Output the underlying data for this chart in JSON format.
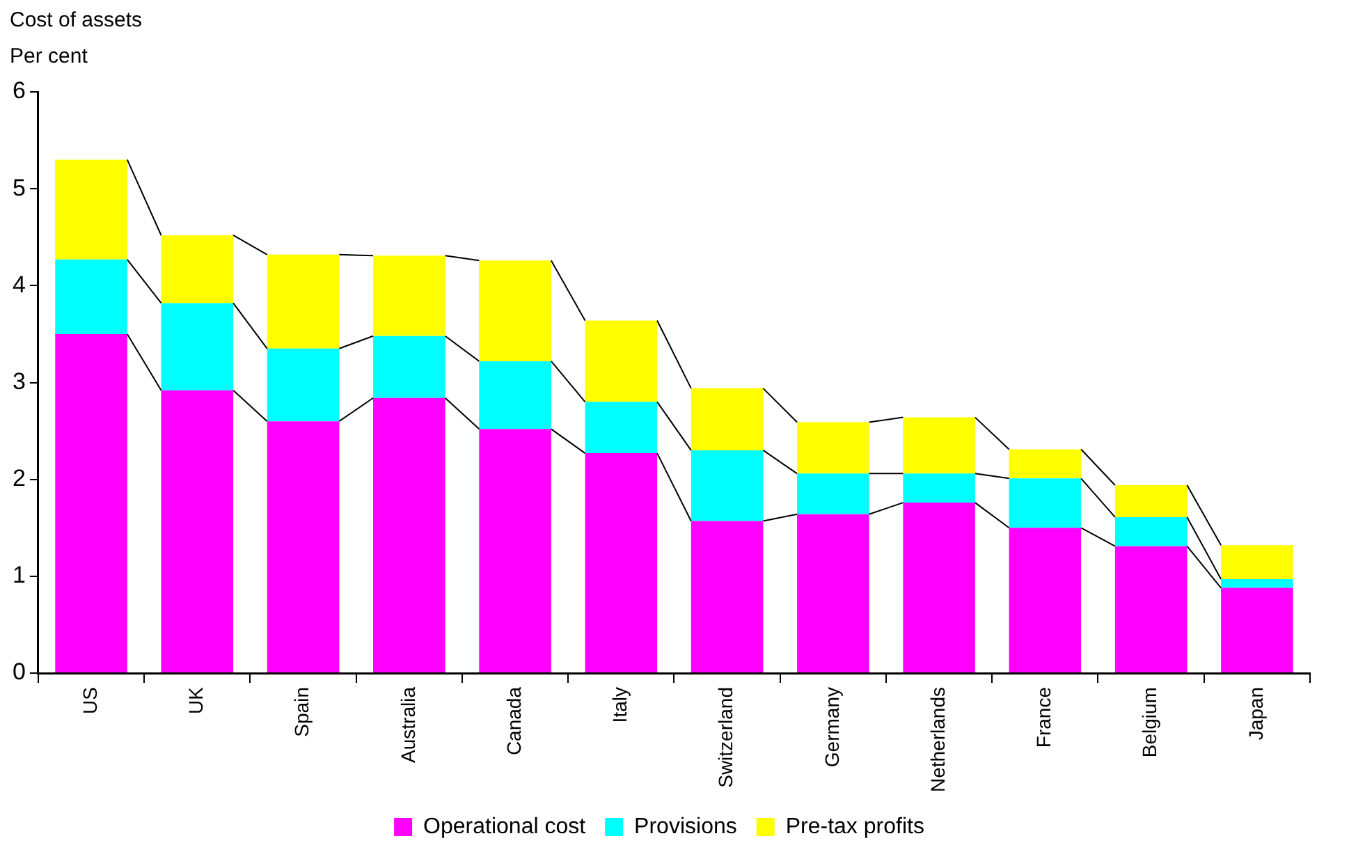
{
  "chart_data": {
    "type": "bar",
    "stacked": true,
    "title": "Cost of assets",
    "ylabel": "Per cent",
    "categories": [
      "US",
      "UK",
      "Spain",
      "Australia",
      "Canada",
      "Italy",
      "Switzerland",
      "Germany",
      "Netherlands",
      "France",
      "Belgium",
      "Japan"
    ],
    "series": [
      {
        "name": "Operational cost",
        "color": "#ff00ff",
        "values": [
          3.5,
          2.92,
          2.6,
          2.84,
          2.52,
          2.27,
          1.57,
          1.64,
          1.76,
          1.5,
          1.31,
          0.88
        ]
      },
      {
        "name": "Provisions",
        "color": "#00ffff",
        "values": [
          0.77,
          0.9,
          0.75,
          0.64,
          0.7,
          0.53,
          0.73,
          0.42,
          0.3,
          0.51,
          0.3,
          0.09
        ]
      },
      {
        "name": "Pre-tax profits",
        "color": "#ffff00",
        "values": [
          1.03,
          0.7,
          0.97,
          0.83,
          1.04,
          0.84,
          0.64,
          0.53,
          0.58,
          0.3,
          0.33,
          0.35
        ]
      }
    ],
    "ylim": [
      0,
      6
    ],
    "yticks": [
      0,
      1,
      2,
      3,
      4,
      5,
      6
    ],
    "grid": false,
    "legend": "bottom"
  }
}
